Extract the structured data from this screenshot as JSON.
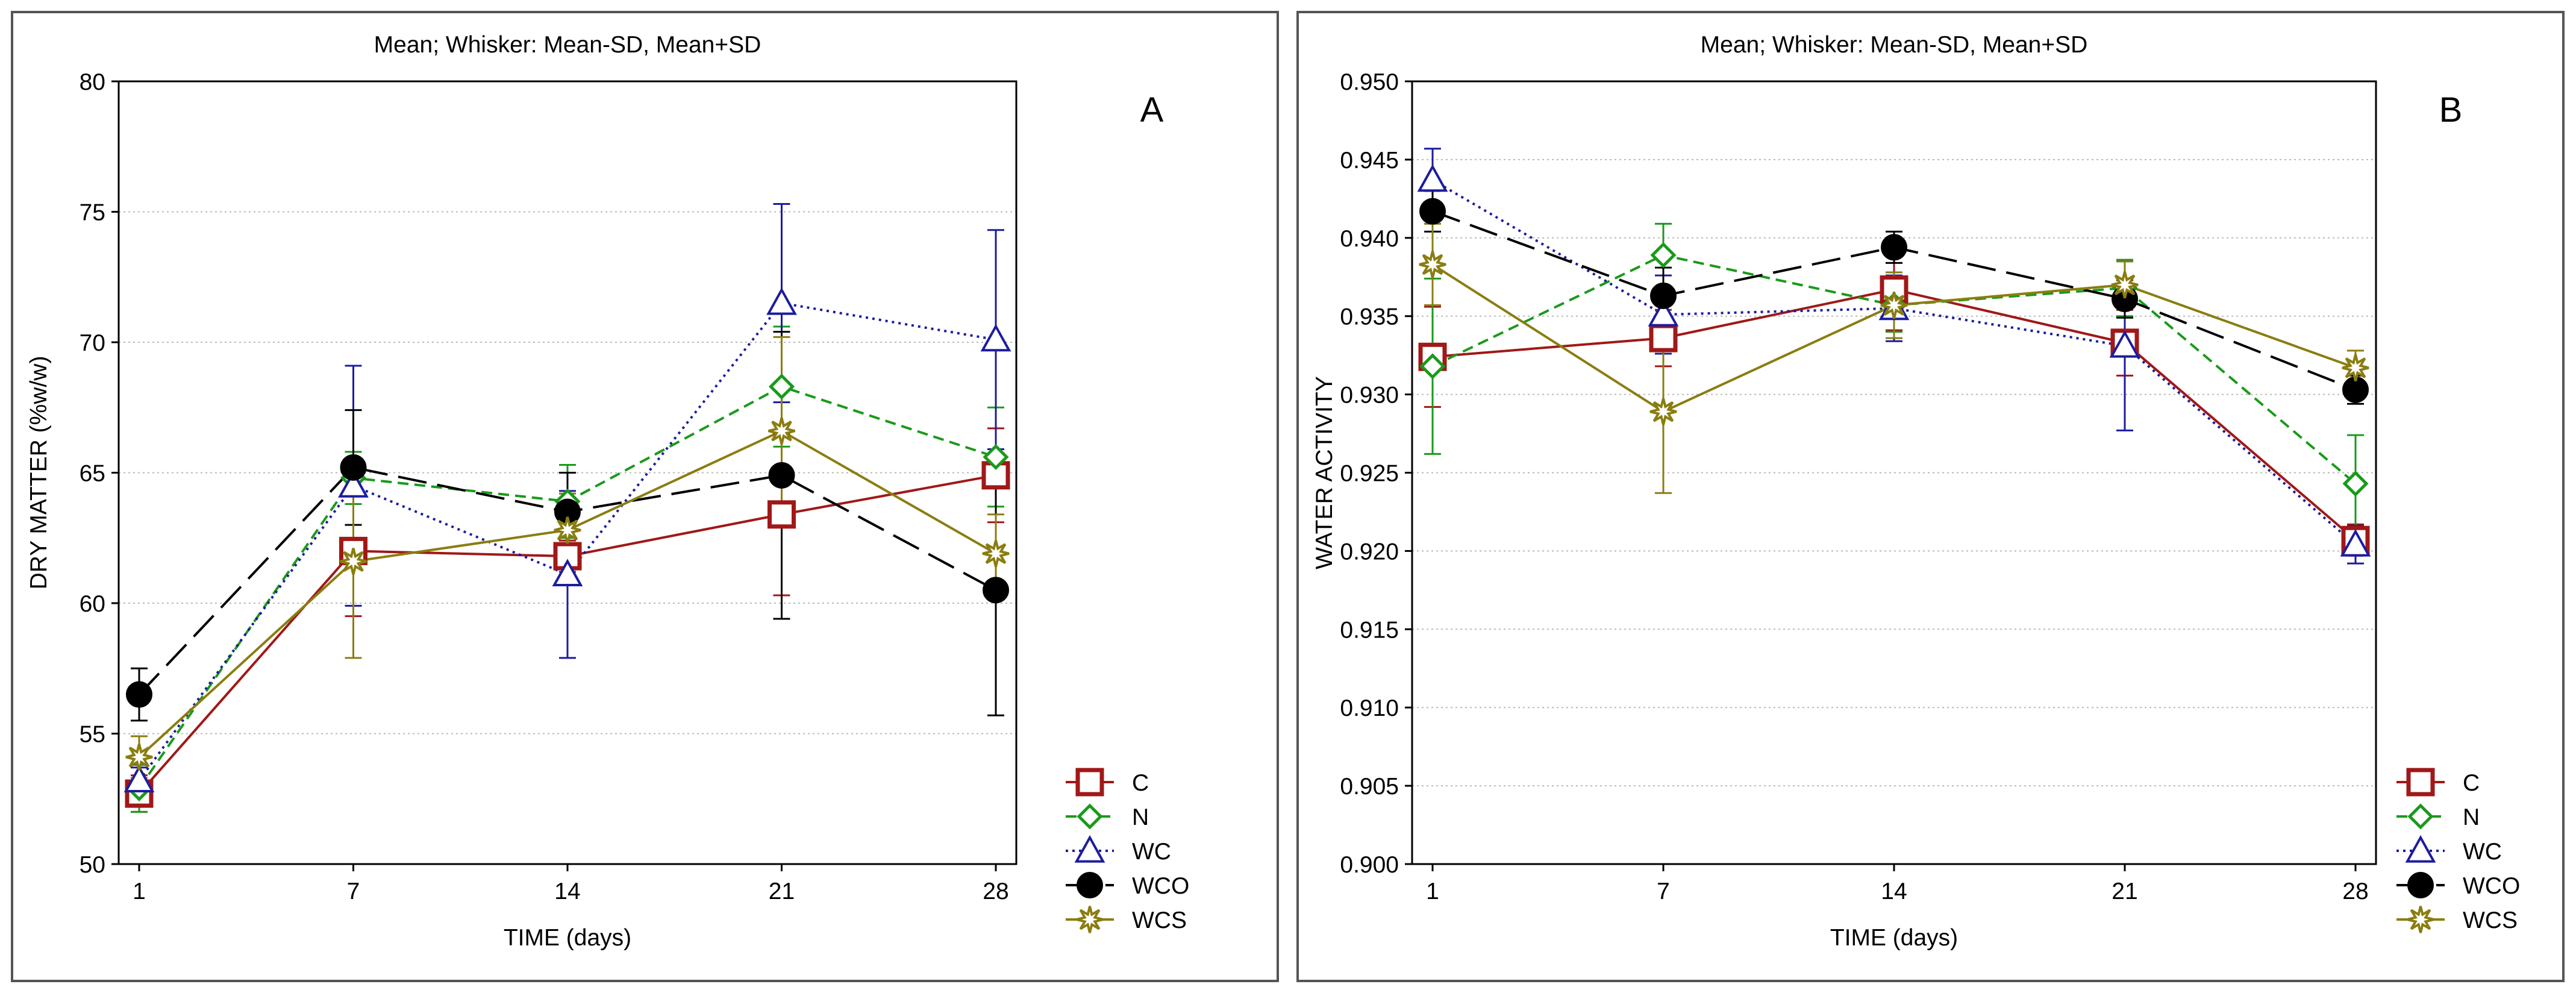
{
  "chart_data": [
    {
      "type": "line",
      "panel_label": "A",
      "title": "Mean;  Whisker: Mean-SD, Mean+SD",
      "xlabel": "TIME (days)",
      "ylabel": "DRY MATTER (%w/w)",
      "categories": [
        "1",
        "7",
        "14",
        "21",
        "28"
      ],
      "ylim": [
        50,
        80
      ],
      "yticks": [
        "50",
        "55",
        "60",
        "65",
        "70",
        "75",
        "80"
      ],
      "grid": true,
      "legend_position": "bottom-right",
      "series": [
        {
          "name": "C",
          "color": "#a01818",
          "dash": "solid",
          "marker": "square",
          "values": [
            52.7,
            62.0,
            61.8,
            63.4,
            64.9
          ],
          "sd": [
            0.7,
            2.5,
            0.6,
            3.1,
            1.8
          ]
        },
        {
          "name": "N",
          "color": "#1a9a1a",
          "dash": "short",
          "marker": "diamond",
          "values": [
            52.9,
            64.8,
            63.9,
            68.3,
            65.6
          ],
          "sd": [
            0.9,
            1.0,
            1.4,
            2.3,
            1.9
          ]
        },
        {
          "name": "WC",
          "color": "#1c1c9e",
          "dash": "dot",
          "marker": "triangle",
          "values": [
            53.2,
            64.5,
            61.1,
            71.5,
            70.1
          ],
          "sd": [
            0.5,
            4.6,
            3.2,
            3.8,
            4.2
          ]
        },
        {
          "name": "WCO",
          "color": "#000000",
          "dash": "long",
          "marker": "circle",
          "values": [
            56.5,
            65.2,
            63.5,
            64.9,
            60.5
          ],
          "sd": [
            1.0,
            2.2,
            1.5,
            5.5,
            4.8
          ]
        },
        {
          "name": "WCS",
          "color": "#8a7d10",
          "dash": "solid",
          "marker": "star",
          "values": [
            54.1,
            61.6,
            62.8,
            66.6,
            61.9
          ],
          "sd": [
            0.8,
            3.7,
            1.4,
            3.6,
            1.5
          ]
        }
      ]
    },
    {
      "type": "line",
      "panel_label": "B",
      "title": "Mean;  Whisker: Mean-SD, Mean+SD",
      "xlabel": "TIME (days)",
      "ylabel": "WATER ACTIVITY",
      "categories": [
        "1",
        "7",
        "14",
        "21",
        "28"
      ],
      "ylim": [
        0.9,
        0.95
      ],
      "yticks": [
        "0.900",
        "0.905",
        "0.910",
        "0.915",
        "0.920",
        "0.925",
        "0.930",
        "0.935",
        "0.940",
        "0.945",
        "0.950"
      ],
      "grid": true,
      "legend_position": "bottom-right",
      "series": [
        {
          "name": "C",
          "color": "#a01818",
          "dash": "solid",
          "marker": "square",
          "values": [
            0.9324,
            0.9336,
            0.9367,
            0.9333,
            0.9207
          ],
          "sd": [
            0.0032,
            0.0018,
            0.0026,
            0.0021,
            0.001
          ]
        },
        {
          "name": "N",
          "color": "#1a9a1a",
          "dash": "short",
          "marker": "diamond",
          "values": [
            0.9318,
            0.9389,
            0.9357,
            0.9368,
            0.9243
          ],
          "sd": [
            0.0056,
            0.002,
            0.0017,
            0.0018,
            0.0031
          ]
        },
        {
          "name": "WC",
          "color": "#1c1c9e",
          "dash": "dot",
          "marker": "triangle",
          "values": [
            0.9437,
            0.9351,
            0.9355,
            0.9331,
            0.9204
          ],
          "sd": [
            0.002,
            0.0025,
            0.0021,
            0.0054,
            0.0012
          ]
        },
        {
          "name": "WCO",
          "color": "#000000",
          "dash": "long",
          "marker": "circle",
          "values": [
            0.9417,
            0.9363,
            0.9394,
            0.9361,
            0.9303
          ],
          "sd": [
            0.0013,
            0.0018,
            0.001,
            0.0012,
            0.0009
          ]
        },
        {
          "name": "WCS",
          "color": "#8a7d10",
          "dash": "solid",
          "marker": "star",
          "values": [
            0.9383,
            0.9289,
            0.9357,
            0.937,
            0.9317
          ],
          "sd": [
            0.0026,
            0.0052,
            0.0021,
            0.0015,
            0.0011
          ]
        }
      ]
    }
  ]
}
